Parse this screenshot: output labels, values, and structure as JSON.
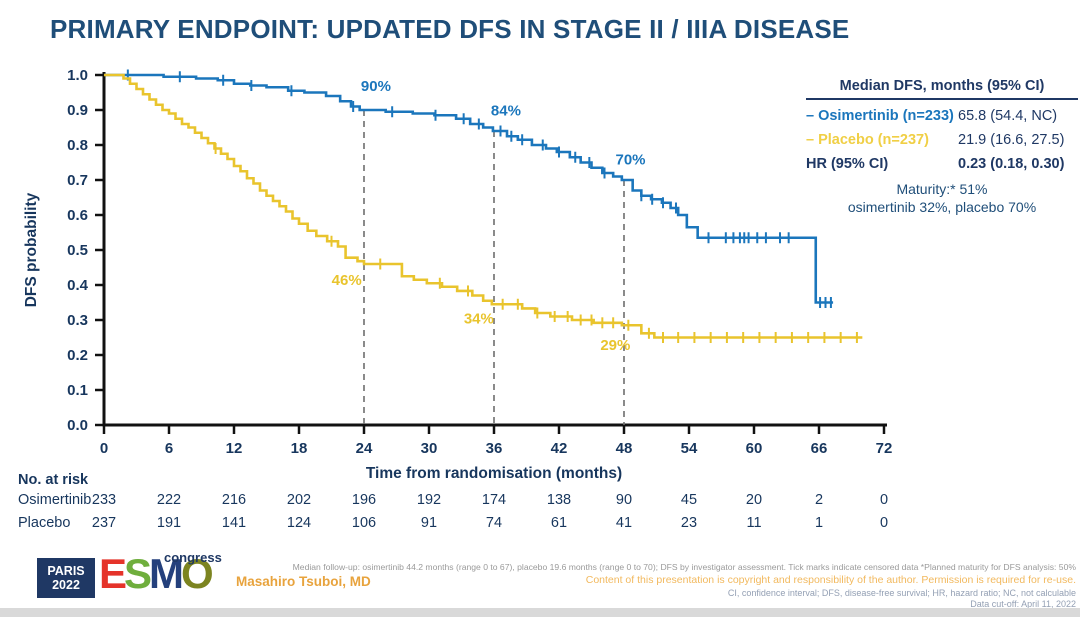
{
  "slide": {
    "title": "PRIMARY ENDPOINT: UPDATED DFS IN STAGE II / IIIA DISEASE"
  },
  "chart_data": {
    "type": "line",
    "subtype": "kaplan-meier-step",
    "xlabel": "Time from randomisation (months)",
    "ylabel": "DFS probability",
    "xlim": [
      0,
      72
    ],
    "ylim": [
      0.0,
      1.0
    ],
    "xticks": [
      0,
      6,
      12,
      18,
      24,
      30,
      36,
      42,
      48,
      54,
      60,
      66,
      72
    ],
    "yticks": [
      0.0,
      0.1,
      0.2,
      0.3,
      0.4,
      0.5,
      0.6,
      0.7,
      0.8,
      0.9,
      1.0
    ],
    "grid": false,
    "series": [
      {
        "name": "Osimertinib",
        "color": "#1b76bc",
        "start_value": 1.0,
        "end_time": 67.3,
        "steps": [
          [
            5.5,
            0.995
          ],
          [
            8.5,
            0.99
          ],
          [
            10.5,
            0.985
          ],
          [
            12,
            0.975
          ],
          [
            13.5,
            0.97
          ],
          [
            15,
            0.965
          ],
          [
            17,
            0.955
          ],
          [
            18.5,
            0.95
          ],
          [
            20.5,
            0.94
          ],
          [
            21.8,
            0.925
          ],
          [
            22.8,
            0.91
          ],
          [
            23.6,
            0.9
          ],
          [
            26,
            0.895
          ],
          [
            28.5,
            0.89
          ],
          [
            30.5,
            0.885
          ],
          [
            32.5,
            0.875
          ],
          [
            33.8,
            0.86
          ],
          [
            35,
            0.85
          ],
          [
            35.9,
            0.84
          ],
          [
            37.2,
            0.825
          ],
          [
            38.2,
            0.815
          ],
          [
            39.5,
            0.8
          ],
          [
            40.8,
            0.79
          ],
          [
            41.8,
            0.78
          ],
          [
            43,
            0.765
          ],
          [
            44,
            0.75
          ],
          [
            45,
            0.735
          ],
          [
            46,
            0.72
          ],
          [
            47,
            0.71
          ],
          [
            47.8,
            0.7
          ],
          [
            48.8,
            0.67
          ],
          [
            49.6,
            0.655
          ],
          [
            50.5,
            0.645
          ],
          [
            51.5,
            0.635
          ],
          [
            52.3,
            0.62
          ],
          [
            53,
            0.6
          ],
          [
            53.8,
            0.565
          ],
          [
            54.8,
            0.535
          ],
          [
            65.7,
            0.35
          ]
        ],
        "censor_ticks": [
          2.2,
          7,
          11,
          13.6,
          17.3,
          23,
          26.6,
          30.6,
          33.2,
          34.6,
          36.6,
          37.6,
          38.6,
          40.5,
          42,
          43.5,
          44.8,
          46.2,
          49.6,
          50.6,
          51.6,
          52.8,
          55.8,
          57.4,
          58.1,
          58.7,
          59.1,
          59.5,
          60.3,
          61.1,
          62.4,
          63.2,
          66.1,
          66.6,
          67.1
        ]
      },
      {
        "name": "Placebo",
        "color": "#e9c42d",
        "start_value": 1.0,
        "end_time": 70,
        "steps": [
          [
            1.8,
            0.99
          ],
          [
            2.4,
            0.975
          ],
          [
            3,
            0.96
          ],
          [
            3.6,
            0.945
          ],
          [
            4.2,
            0.93
          ],
          [
            4.8,
            0.915
          ],
          [
            5.4,
            0.9
          ],
          [
            6,
            0.89
          ],
          [
            6.6,
            0.875
          ],
          [
            7.2,
            0.86
          ],
          [
            7.8,
            0.85
          ],
          [
            8.4,
            0.835
          ],
          [
            9,
            0.82
          ],
          [
            9.6,
            0.805
          ],
          [
            10.2,
            0.79
          ],
          [
            10.8,
            0.775
          ],
          [
            11.4,
            0.76
          ],
          [
            12,
            0.74
          ],
          [
            12.6,
            0.725
          ],
          [
            13.2,
            0.705
          ],
          [
            13.8,
            0.69
          ],
          [
            14.4,
            0.67
          ],
          [
            15,
            0.655
          ],
          [
            15.6,
            0.64
          ],
          [
            16.2,
            0.625
          ],
          [
            16.8,
            0.61
          ],
          [
            17.4,
            0.59
          ],
          [
            18,
            0.575
          ],
          [
            18.8,
            0.555
          ],
          [
            19.6,
            0.54
          ],
          [
            20.6,
            0.525
          ],
          [
            21.6,
            0.51
          ],
          [
            22.3,
            0.478
          ],
          [
            23.4,
            0.468
          ],
          [
            24,
            0.46
          ],
          [
            27.5,
            0.425
          ],
          [
            28.6,
            0.415
          ],
          [
            29.8,
            0.405
          ],
          [
            31.2,
            0.395
          ],
          [
            32.6,
            0.383
          ],
          [
            34,
            0.37
          ],
          [
            35,
            0.355
          ],
          [
            35.8,
            0.345
          ],
          [
            38.6,
            0.333
          ],
          [
            39.8,
            0.32
          ],
          [
            41.2,
            0.31
          ],
          [
            43.2,
            0.3
          ],
          [
            45.2,
            0.292
          ],
          [
            47.8,
            0.285
          ],
          [
            49.6,
            0.262
          ],
          [
            50.8,
            0.25
          ]
        ],
        "censor_ticks": [
          10.3,
          21,
          25.5,
          31,
          33.6,
          36.8,
          38.2,
          40,
          41.6,
          42.8,
          44,
          45,
          46,
          47,
          48.4,
          50.3,
          51.6,
          53,
          54.5,
          56,
          57.5,
          59,
          60.5,
          62,
          63.5,
          65,
          66.5,
          68,
          69.5
        ]
      }
    ],
    "milestones": [
      {
        "t": 24,
        "osimertinib": 0.9,
        "placebo": 0.46
      },
      {
        "t": 36,
        "osimertinib": 0.84,
        "placebo": 0.34
      },
      {
        "t": 48,
        "osimertinib": 0.7,
        "placebo": 0.29
      }
    ],
    "annotations": [
      {
        "text": "90%",
        "t": 25.1,
        "v": 0.955,
        "color": "#1b76bc"
      },
      {
        "text": "84%",
        "t": 37.1,
        "v": 0.885,
        "color": "#1b76bc"
      },
      {
        "text": "70%",
        "t": 48.6,
        "v": 0.745,
        "color": "#1b76bc"
      },
      {
        "text": "46%",
        "t": 22.4,
        "v": 0.4,
        "color": "#e9c42d"
      },
      {
        "text": "34%",
        "t": 34.6,
        "v": 0.29,
        "color": "#e9c42d"
      },
      {
        "text": "29%",
        "t": 47.2,
        "v": 0.215,
        "color": "#e9c42d"
      }
    ],
    "dashed_line_color": "#6e6e6e",
    "axis_color": "#111111"
  },
  "legend_table": {
    "header": "Median DFS, months (95% CI)",
    "rows": [
      {
        "label": "– Osimertinib (n=233)",
        "value": "65.8 (54.4, NC)",
        "label_color": "#1b76bc",
        "value_bold": false
      },
      {
        "label": "– Placebo (n=237)",
        "value": "21.9 (16.6, 27.5)",
        "label_color": "#f0cf45",
        "value_bold": false
      },
      {
        "label": "HR (95% CI)",
        "value": "0.23 (0.18, 0.30)",
        "label_color": "#1f3864",
        "value_bold": true
      }
    ],
    "maturity_line1": "Maturity:* 51%",
    "maturity_line2": "osimertinib 32%, placebo 70%"
  },
  "risk_table": {
    "heading": "No. at risk",
    "rows": [
      {
        "label": "Osimertinib",
        "counts": [
          "233",
          "222",
          "216",
          "202",
          "196",
          "192",
          "174",
          "138",
          "90",
          "45",
          "20",
          "2",
          "0"
        ]
      },
      {
        "label": "Placebo",
        "counts": [
          "237",
          "191",
          "141",
          "124",
          "106",
          "91",
          "74",
          "61",
          "41",
          "23",
          "11",
          "1",
          "0"
        ]
      }
    ]
  },
  "footer": {
    "logo": {
      "box_line1": "PARIS",
      "box_line2": "2022",
      "letters": [
        {
          "ch": "E",
          "color": "#e5332a"
        },
        {
          "ch": "S",
          "color": "#6fae3d"
        },
        {
          "ch": "M",
          "color": "#24407c"
        },
        {
          "ch": "O",
          "color": "#7c8420"
        }
      ],
      "congress": "congress"
    },
    "presenter": "Masahiro Tsuboi, MD",
    "note1": "Median follow-up: osimertinib 44.2 months (range 0 to 67), placebo 19.6 months (range 0 to 70); DFS by investigator assessment. Tick marks indicate censored data  *Planned maturity for DFS analysis: 50%",
    "copyright": "Content of this presentation is copyright and responsibility of the author. Permission is required for re-use.",
    "abbrev": "CI, confidence interval; DFS, disease-free survival; HR, hazard ratio; NC, not calculable",
    "cutoff": "Data cut-off: April 11, 2022"
  }
}
